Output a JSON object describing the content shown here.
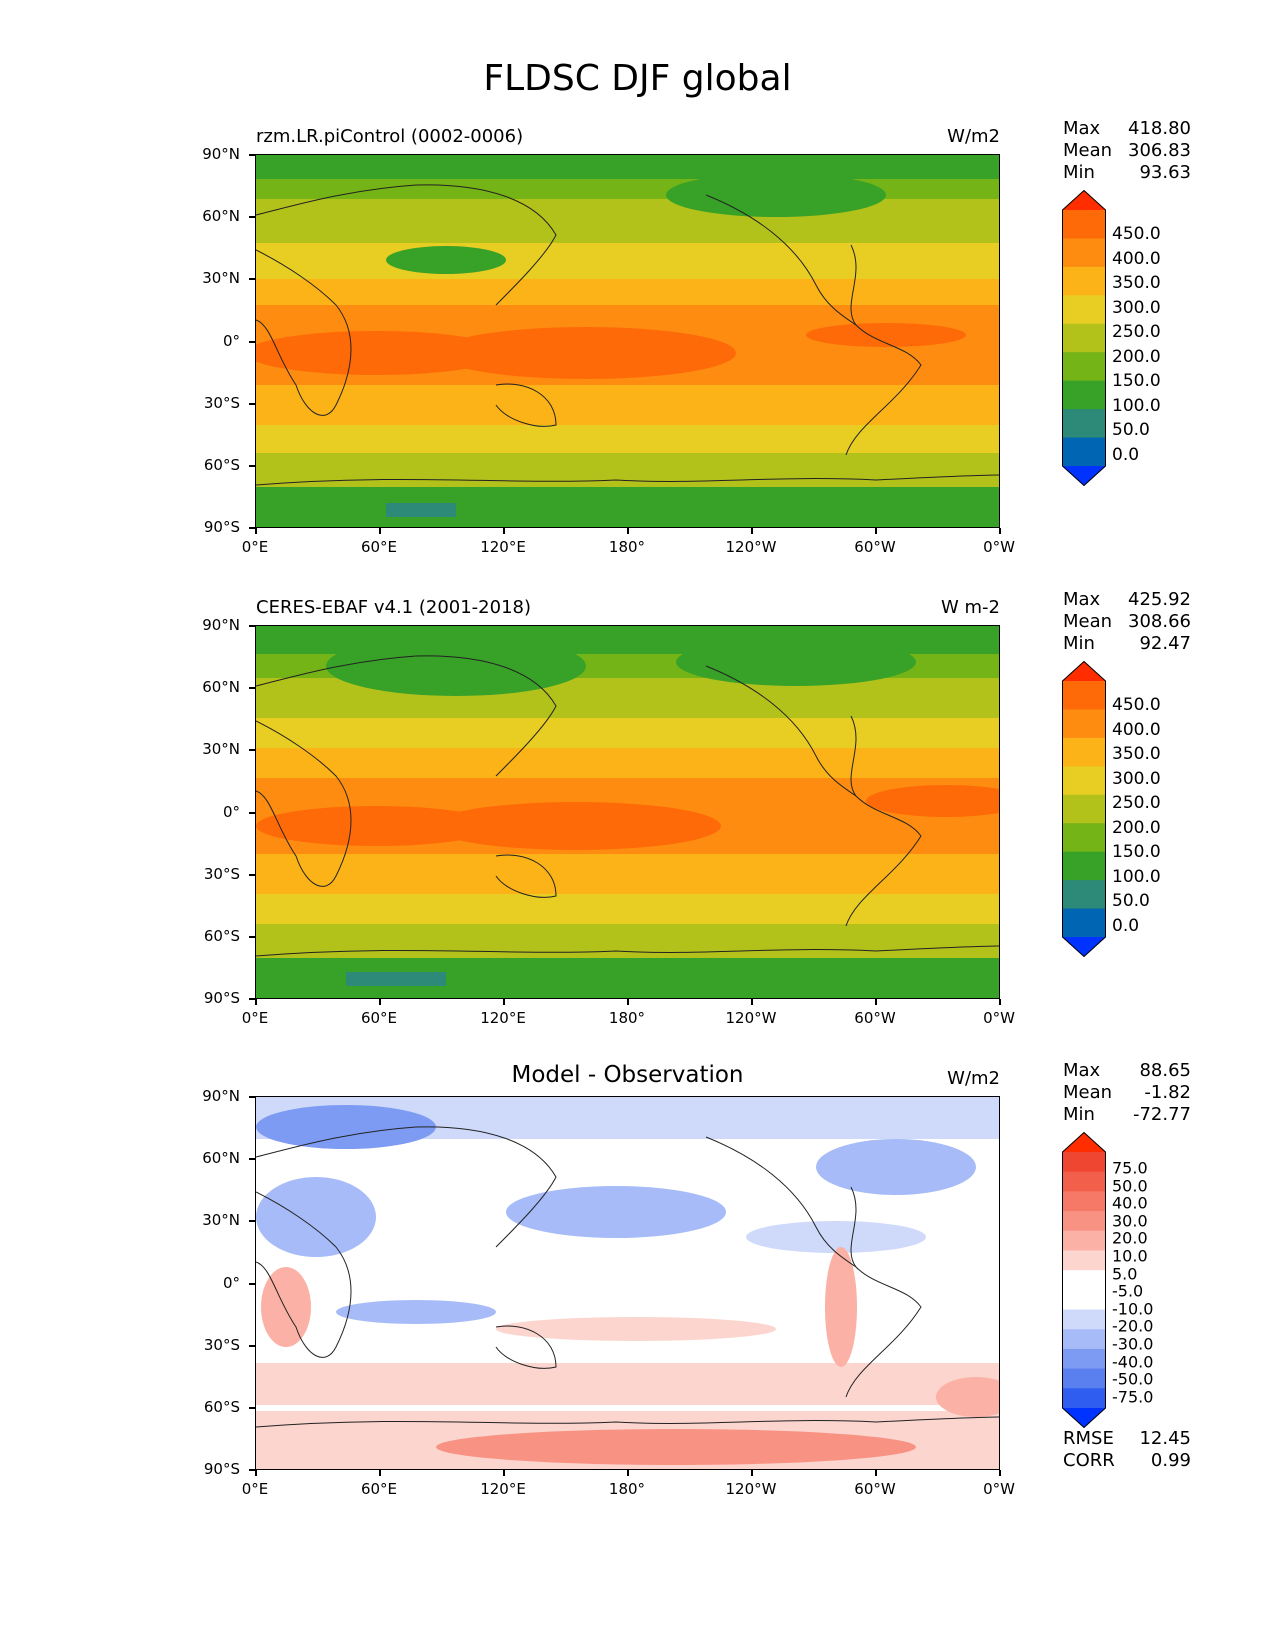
{
  "title": "FLDSC DJF global",
  "lat_labels": [
    "90°N",
    "60°N",
    "30°N",
    "0°",
    "30°S",
    "60°S",
    "90°S"
  ],
  "lon_labels": [
    "0°E",
    "60°E",
    "120°E",
    "180°",
    "120°W",
    "60°W",
    "0°W"
  ],
  "colors": {
    "mean_levels": [
      "#0033ff",
      "#0066b3",
      "#2e8a78",
      "#38a128",
      "#74b417",
      "#b3c11b",
      "#e8cd22",
      "#fbb318",
      "#fd8c10",
      "#ff6a08",
      "#ff2d00"
    ],
    "diff_levels": [
      "#0033ff",
      "#2f5df0",
      "#5a7fee",
      "#7d9bf3",
      "#a6bbf7",
      "#cfdafb",
      "#ffffff",
      "#ffffff",
      "#fcd5cf",
      "#fbb1a5",
      "#f89384",
      "#f57966",
      "#f2604c",
      "#ef4632",
      "#ff2d00"
    ]
  },
  "panels": [
    {
      "id": "model",
      "left_title": "rzm.LR.piControl (0002-0006)",
      "units": "W/m2",
      "stats": {
        "max_label": "Max",
        "max": "418.80",
        "mean_label": "Mean",
        "mean": "306.83",
        "min_label": "Min",
        "min": "93.63"
      },
      "colorbar": {
        "levels": [
          "450.0",
          "400.0",
          "350.0",
          "300.0",
          "250.0",
          "200.0",
          "150.0",
          "100.0",
          "50.0",
          "0.0"
        ]
      }
    },
    {
      "id": "obs",
      "left_title": "CERES-EBAF v4.1 (2001-2018)",
      "units": "W m-2",
      "stats": {
        "max_label": "Max",
        "max": "425.92",
        "mean_label": "Mean",
        "mean": "308.66",
        "min_label": "Min",
        "min": "92.47"
      },
      "colorbar": {
        "levels": [
          "450.0",
          "400.0",
          "350.0",
          "300.0",
          "250.0",
          "200.0",
          "150.0",
          "100.0",
          "50.0",
          "0.0"
        ]
      }
    },
    {
      "id": "diff",
      "center_title": "Model - Observation",
      "units": "W/m2",
      "stats": {
        "max_label": "Max",
        "max": "88.65",
        "mean_label": "Mean",
        "mean": "-1.82",
        "min_label": "Min",
        "min": "-72.77"
      },
      "colorbar": {
        "levels": [
          "75.0",
          "50.0",
          "40.0",
          "30.0",
          "20.0",
          "10.0",
          "5.0",
          "-5.0",
          "-10.0",
          "-20.0",
          "-30.0",
          "-40.0",
          "-50.0",
          "-75.0"
        ]
      },
      "metrics": {
        "rmse_label": "RMSE",
        "rmse": "12.45",
        "corr_label": "CORR",
        "corr": "0.99"
      }
    }
  ]
}
